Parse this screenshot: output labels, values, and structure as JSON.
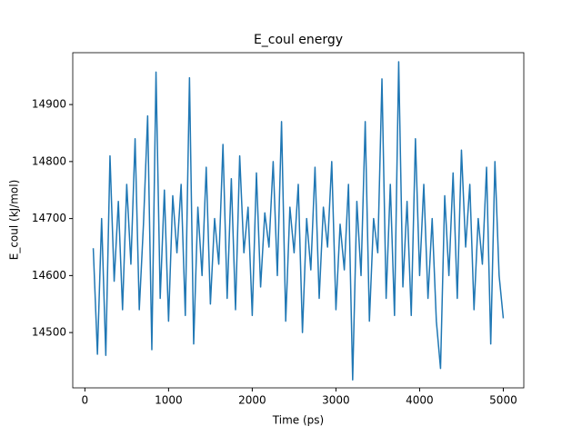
{
  "chart_data": {
    "type": "line",
    "title": "E_coul energy",
    "x_label": "Time (ps)",
    "y_label": "E_coul (kJ/mol)",
    "x": [
      100,
      150,
      200,
      250,
      300,
      350,
      400,
      450,
      500,
      550,
      600,
      650,
      700,
      750,
      800,
      850,
      900,
      950,
      1000,
      1050,
      1100,
      1150,
      1200,
      1250,
      1300,
      1350,
      1400,
      1450,
      1500,
      1550,
      1600,
      1650,
      1700,
      1750,
      1800,
      1850,
      1900,
      1950,
      2000,
      2050,
      2100,
      2150,
      2200,
      2250,
      2300,
      2350,
      2400,
      2450,
      2500,
      2550,
      2600,
      2650,
      2700,
      2750,
      2800,
      2850,
      2900,
      2950,
      3000,
      3050,
      3100,
      3150,
      3200,
      3250,
      3300,
      3350,
      3400,
      3450,
      3500,
      3550,
      3600,
      3650,
      3700,
      3750,
      3800,
      3850,
      3900,
      3950,
      4000,
      4050,
      4100,
      4150,
      4200,
      4250,
      4300,
      4350,
      4400,
      4450,
      4500,
      4550,
      4600,
      4650,
      4700,
      4750,
      4800,
      4850,
      4900,
      4950,
      5000
    ],
    "series": [
      {
        "name": "E_coul",
        "color": "#1f77b4",
        "values": [
          14648,
          14462,
          14700,
          14460,
          14810,
          14590,
          14730,
          14540,
          14760,
          14620,
          14840,
          14540,
          14690,
          14880,
          14470,
          14957,
          14560,
          14750,
          14520,
          14740,
          14640,
          14760,
          14530,
          14947,
          14480,
          14720,
          14600,
          14790,
          14550,
          14700,
          14620,
          14830,
          14560,
          14770,
          14540,
          14810,
          14640,
          14720,
          14530,
          14780,
          14580,
          14710,
          14650,
          14800,
          14600,
          14870,
          14520,
          14720,
          14640,
          14760,
          14500,
          14700,
          14610,
          14790,
          14560,
          14720,
          14650,
          14800,
          14540,
          14690,
          14610,
          14760,
          14417,
          14730,
          14600,
          14870,
          14520,
          14700,
          14640,
          14945,
          14560,
          14760,
          14530,
          14975,
          14580,
          14730,
          14530,
          14840,
          14600,
          14760,
          14560,
          14700,
          14520,
          14437,
          14740,
          14600,
          14780,
          14560,
          14820,
          14650,
          14760,
          14540,
          14700,
          14620,
          14790,
          14480,
          14800,
          14600,
          14525
        ]
      }
    ],
    "xlim": [
      -145,
      5245
    ],
    "ylim": [
      14403,
      14991
    ],
    "xticks": [
      0,
      1000,
      2000,
      3000,
      4000,
      5000
    ],
    "yticks": [
      14500,
      14600,
      14700,
      14800,
      14900
    ]
  }
}
